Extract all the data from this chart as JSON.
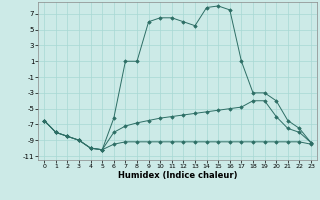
{
  "xlabel": "Humidex (Indice chaleur)",
  "bg_color": "#cceae7",
  "grid_color": "#a8d8d4",
  "line_color": "#2d6e65",
  "xlim": [
    -0.5,
    23.5
  ],
  "ylim": [
    -11.5,
    8.5
  ],
  "yticks": [
    -11,
    -9,
    -7,
    -5,
    -3,
    -1,
    1,
    3,
    5,
    7
  ],
  "xticks": [
    0,
    1,
    2,
    3,
    4,
    5,
    6,
    7,
    8,
    9,
    10,
    11,
    12,
    13,
    14,
    15,
    16,
    17,
    18,
    19,
    20,
    21,
    22,
    23
  ],
  "line1_x": [
    0,
    1,
    2,
    3,
    4,
    5,
    6,
    7,
    8,
    9,
    10,
    11,
    12,
    13,
    14,
    15,
    16,
    17,
    18,
    19,
    20,
    21,
    22,
    23
  ],
  "line1_y": [
    -6.5,
    -8.0,
    -8.5,
    -9.0,
    -10.0,
    -10.2,
    -9.5,
    -9.2,
    -9.2,
    -9.2,
    -9.2,
    -9.2,
    -9.2,
    -9.2,
    -9.2,
    -9.2,
    -9.2,
    -9.2,
    -9.2,
    -9.2,
    -9.2,
    -9.2,
    -9.2,
    -9.5
  ],
  "line2_x": [
    0,
    1,
    2,
    3,
    4,
    5,
    6,
    7,
    8,
    9,
    10,
    11,
    12,
    13,
    14,
    15,
    16,
    17,
    18,
    19,
    20,
    21,
    22,
    23
  ],
  "line2_y": [
    -6.5,
    -8.0,
    -8.5,
    -9.0,
    -10.0,
    -10.2,
    -8.0,
    -7.2,
    -6.8,
    -6.5,
    -6.2,
    -6.0,
    -5.8,
    -5.6,
    -5.4,
    -5.2,
    -5.0,
    -4.8,
    -4.0,
    -4.0,
    -6.0,
    -7.5,
    -8.0,
    -9.3
  ],
  "line3_x": [
    0,
    1,
    2,
    3,
    4,
    5,
    6,
    7,
    8,
    9,
    10,
    11,
    12,
    13,
    14,
    15,
    16,
    17,
    18,
    19,
    20,
    21,
    22,
    23
  ],
  "line3_y": [
    -6.5,
    -8.0,
    -8.5,
    -9.0,
    -10.0,
    -10.2,
    -6.2,
    1.0,
    1.0,
    6.0,
    6.5,
    6.5,
    6.0,
    5.5,
    7.8,
    8.0,
    7.5,
    1.0,
    -3.0,
    -3.0,
    -4.0,
    -6.5,
    -7.5,
    -9.3
  ]
}
